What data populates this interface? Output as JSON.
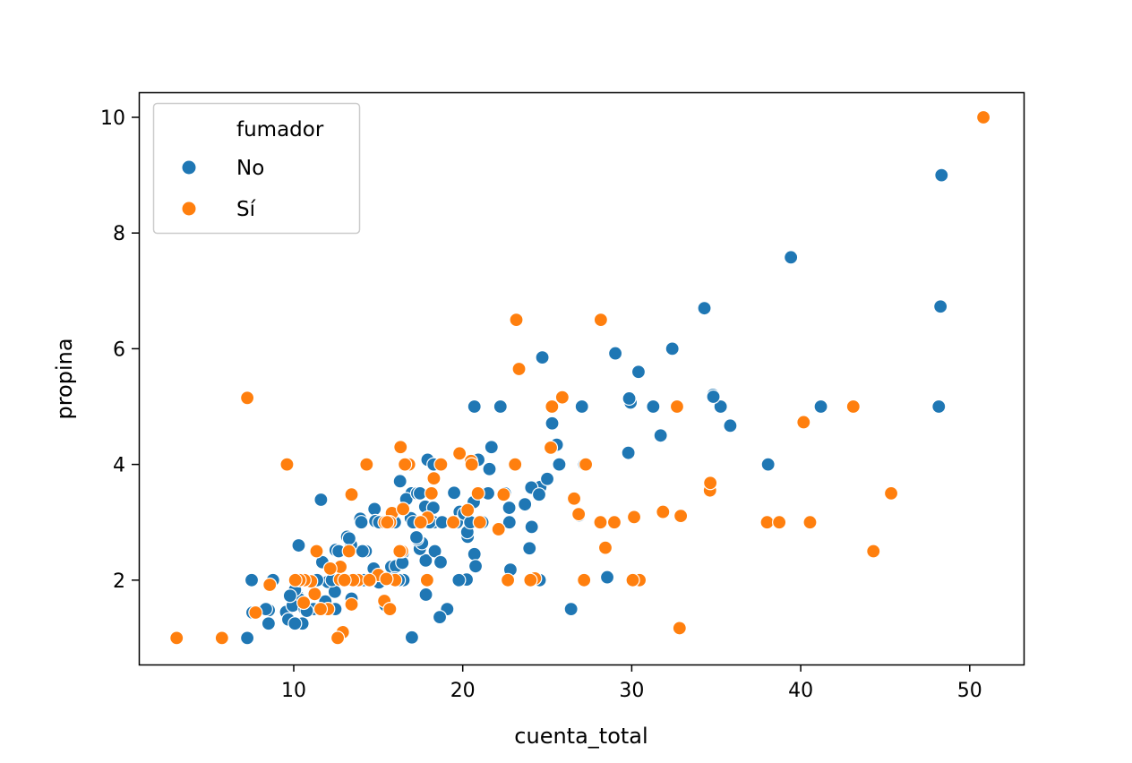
{
  "chart_data": {
    "type": "scatter",
    "xlabel": "cuenta_total",
    "ylabel": "propina",
    "xlim": [
      1,
      53
    ],
    "ylim": [
      0.55,
      10.45
    ],
    "xticks": [
      10,
      20,
      30,
      40,
      50
    ],
    "yticks": [
      2,
      4,
      6,
      8,
      10
    ],
    "grid": false,
    "legend": {
      "title": "fumador",
      "placement": "top-left"
    },
    "series": [
      {
        "name": "No",
        "color": "#1f77b4",
        "points": [
          [
            16.99,
            1.01
          ],
          [
            10.34,
            1.66
          ],
          [
            21.01,
            3.5
          ],
          [
            23.68,
            3.31
          ],
          [
            24.59,
            3.61
          ],
          [
            25.29,
            4.71
          ],
          [
            8.77,
            2.0
          ],
          [
            26.88,
            3.12
          ],
          [
            15.04,
            1.96
          ],
          [
            14.78,
            3.23
          ],
          [
            10.27,
            1.71
          ],
          [
            35.26,
            5.0
          ],
          [
            15.42,
            1.57
          ],
          [
            18.43,
            3.0
          ],
          [
            14.83,
            3.02
          ],
          [
            21.58,
            3.92
          ],
          [
            10.33,
            1.67
          ],
          [
            16.29,
            3.71
          ],
          [
            16.97,
            3.5
          ],
          [
            20.65,
            3.35
          ],
          [
            17.92,
            4.08
          ],
          [
            20.29,
            2.75
          ],
          [
            15.77,
            2.23
          ],
          [
            39.42,
            7.58
          ],
          [
            19.82,
            3.18
          ],
          [
            17.81,
            2.34
          ],
          [
            13.37,
            2.0
          ],
          [
            12.69,
            2.0
          ],
          [
            21.7,
            4.3
          ],
          [
            19.65,
            3.0
          ],
          [
            9.55,
            1.45
          ],
          [
            18.35,
            2.5
          ],
          [
            15.06,
            3.0
          ],
          [
            20.69,
            2.45
          ],
          [
            17.78,
            3.27
          ],
          [
            24.06,
            3.6
          ],
          [
            16.31,
            2.0
          ],
          [
            16.93,
            3.07
          ],
          [
            18.69,
            2.31
          ],
          [
            31.27,
            5.0
          ],
          [
            16.04,
            2.24
          ],
          [
            17.46,
            2.54
          ],
          [
            13.94,
            3.06
          ],
          [
            9.68,
            1.32
          ],
          [
            30.4,
            5.6
          ],
          [
            18.29,
            3.0
          ],
          [
            22.23,
            5.0
          ],
          [
            32.4,
            6.0
          ],
          [
            28.55,
            2.05
          ],
          [
            18.04,
            3.0
          ],
          [
            12.54,
            2.5
          ],
          [
            10.29,
            2.6
          ],
          [
            34.81,
            5.2
          ],
          [
            9.94,
            1.56
          ],
          [
            25.56,
            4.34
          ],
          [
            19.49,
            3.51
          ],
          [
            26.41,
            1.5
          ],
          [
            48.27,
            6.73
          ],
          [
            17.59,
            2.64
          ],
          [
            20.08,
            3.15
          ],
          [
            16.45,
            2.47
          ],
          [
            20.23,
            2.01
          ],
          [
            12.02,
            1.97
          ],
          [
            17.07,
            3.0
          ],
          [
            14.73,
            2.2
          ],
          [
            10.51,
            1.25
          ],
          [
            27.2,
            4.0
          ],
          [
            22.76,
            3.0
          ],
          [
            17.29,
            2.71
          ],
          [
            16.66,
            3.4
          ],
          [
            10.07,
            1.83
          ],
          [
            15.98,
            2.03
          ],
          [
            34.83,
            5.17
          ],
          [
            13.03,
            2.0
          ],
          [
            18.28,
            4.0
          ],
          [
            24.71,
            5.85
          ],
          [
            21.16,
            3.0
          ],
          [
            22.49,
            3.5
          ],
          [
            22.75,
            3.25
          ],
          [
            12.46,
            1.5
          ],
          [
            20.92,
            4.08
          ],
          [
            18.24,
            3.76
          ],
          [
            14.0,
            3.0
          ],
          [
            7.25,
            1.0
          ],
          [
            38.07,
            4.0
          ],
          [
            23.95,
            2.55
          ],
          [
            25.71,
            4.0
          ],
          [
            17.31,
            3.5
          ],
          [
            29.93,
            5.07
          ],
          [
            10.65,
            1.5
          ],
          [
            12.43,
            1.8
          ],
          [
            24.08,
            2.92
          ],
          [
            11.69,
            2.31
          ],
          [
            13.42,
            1.68
          ],
          [
            14.26,
            2.5
          ],
          [
            15.95,
            2.0
          ],
          [
            12.48,
            2.52
          ],
          [
            29.8,
            4.2
          ],
          [
            8.52,
            1.48
          ],
          [
            14.52,
            2.0
          ],
          [
            11.38,
            2.0
          ],
          [
            22.82,
            2.18
          ],
          [
            19.08,
            1.5
          ],
          [
            20.27,
            2.83
          ],
          [
            11.17,
            1.5
          ],
          [
            12.26,
            2.0
          ],
          [
            18.26,
            3.25
          ],
          [
            8.51,
            1.25
          ],
          [
            10.33,
            2.0
          ],
          [
            14.15,
            2.0
          ],
          [
            13.16,
            2.75
          ],
          [
            17.47,
            3.5
          ],
          [
            34.3,
            6.7
          ],
          [
            41.19,
            5.0
          ],
          [
            27.05,
            5.0
          ],
          [
            16.43,
            2.3
          ],
          [
            8.35,
            1.5
          ],
          [
            18.64,
            1.36
          ],
          [
            11.87,
            1.63
          ],
          [
            9.78,
            1.73
          ],
          [
            7.51,
            2.0
          ],
          [
            14.07,
            2.5
          ],
          [
            13.13,
            2.0
          ],
          [
            17.26,
            2.74
          ],
          [
            24.55,
            2.0
          ],
          [
            19.77,
            2.0
          ],
          [
            29.85,
            5.14
          ],
          [
            48.17,
            5.0
          ],
          [
            25.0,
            3.75
          ],
          [
            13.39,
            2.61
          ],
          [
            16.49,
            2.0
          ],
          [
            21.5,
            3.5
          ],
          [
            12.66,
            2.5
          ],
          [
            16.21,
            2.0
          ],
          [
            13.81,
            2.0
          ],
          [
            24.52,
            3.48
          ],
          [
            20.76,
            2.24
          ],
          [
            31.71,
            4.5
          ],
          [
            20.69,
            5.0
          ],
          [
            7.56,
            1.44
          ],
          [
            48.33,
            9.0
          ],
          [
            15.98,
            3.0
          ],
          [
            20.45,
            3.0
          ],
          [
            13.28,
            2.72
          ],
          [
            11.61,
            3.39
          ],
          [
            10.77,
            1.47
          ],
          [
            10.07,
            1.25
          ],
          [
            35.83,
            4.67
          ],
          [
            29.03,
            5.92
          ],
          [
            17.82,
            1.75
          ],
          [
            18.78,
            3.0
          ]
        ]
      },
      {
        "name": "Sí",
        "color": "#ff7f0e",
        "points": [
          [
            38.01,
            3.0
          ],
          [
            11.24,
            1.76
          ],
          [
            20.29,
            3.21
          ],
          [
            13.81,
            2.0
          ],
          [
            11.02,
            1.98
          ],
          [
            18.29,
            3.76
          ],
          [
            3.07,
            1.0
          ],
          [
            15.01,
            2.09
          ],
          [
            26.86,
            3.14
          ],
          [
            25.28,
            5.0
          ],
          [
            17.92,
            3.08
          ],
          [
            19.44,
            3.0
          ],
          [
            32.68,
            5.0
          ],
          [
            28.97,
            3.0
          ],
          [
            5.75,
            1.0
          ],
          [
            16.32,
            4.3
          ],
          [
            40.17,
            4.73
          ],
          [
            27.28,
            4.0
          ],
          [
            12.03,
            1.5
          ],
          [
            21.01,
            3.0
          ],
          [
            11.35,
            2.5
          ],
          [
            15.38,
            3.0
          ],
          [
            44.3,
            2.5
          ],
          [
            22.42,
            3.48
          ],
          [
            15.36,
            1.64
          ],
          [
            20.49,
            4.06
          ],
          [
            25.21,
            4.29
          ],
          [
            14.31,
            4.0
          ],
          [
            16.0,
            2.0
          ],
          [
            17.51,
            3.0
          ],
          [
            10.59,
            1.61
          ],
          [
            10.63,
            2.0
          ],
          [
            50.81,
            10.0
          ],
          [
            15.81,
            3.16
          ],
          [
            7.25,
            5.15
          ],
          [
            31.85,
            3.18
          ],
          [
            16.82,
            4.0
          ],
          [
            32.9,
            3.11
          ],
          [
            17.89,
            2.0
          ],
          [
            14.48,
            2.0
          ],
          [
            9.6,
            4.0
          ],
          [
            34.63,
            3.55
          ],
          [
            34.65,
            3.68
          ],
          [
            23.33,
            5.65
          ],
          [
            45.35,
            3.5
          ],
          [
            23.17,
            6.5
          ],
          [
            40.55,
            3.0
          ],
          [
            20.9,
            3.5
          ],
          [
            30.46,
            2.0
          ],
          [
            18.15,
            3.5
          ],
          [
            23.1,
            4.0
          ],
          [
            15.69,
            1.5
          ],
          [
            19.81,
            4.19
          ],
          [
            28.44,
            2.56
          ],
          [
            15.48,
            2.02
          ],
          [
            16.58,
            4.0
          ],
          [
            10.34,
            2.0
          ],
          [
            43.11,
            5.0
          ],
          [
            13.0,
            2.0
          ],
          [
            13.51,
            2.0
          ],
          [
            18.71,
            4.0
          ],
          [
            12.74,
            2.01
          ],
          [
            13.0,
            2.0
          ],
          [
            16.4,
            2.5
          ],
          [
            20.53,
            4.0
          ],
          [
            16.47,
            3.23
          ],
          [
            26.59,
            3.41
          ],
          [
            38.73,
            3.0
          ],
          [
            24.27,
            2.03
          ],
          [
            12.76,
            2.23
          ],
          [
            30.06,
            2.0
          ],
          [
            25.89,
            5.16
          ],
          [
            13.27,
            2.5
          ],
          [
            28.17,
            6.5
          ],
          [
            12.9,
            1.1
          ],
          [
            28.15,
            3.0
          ],
          [
            11.59,
            1.5
          ],
          [
            7.74,
            1.44
          ],
          [
            30.14,
            3.09
          ],
          [
            12.16,
            2.2
          ],
          [
            13.42,
            3.48
          ],
          [
            8.58,
            1.92
          ],
          [
            13.42,
            1.58
          ],
          [
            16.27,
            2.5
          ],
          [
            10.09,
            2.0
          ],
          [
            22.12,
            2.88
          ],
          [
            24.01,
            2.0
          ],
          [
            15.69,
            3.0
          ],
          [
            15.53,
            3.0
          ],
          [
            12.6,
            1.0
          ],
          [
            32.83,
            1.17
          ],
          [
            27.18,
            2.0
          ],
          [
            22.67,
            2.0
          ]
        ]
      }
    ]
  }
}
